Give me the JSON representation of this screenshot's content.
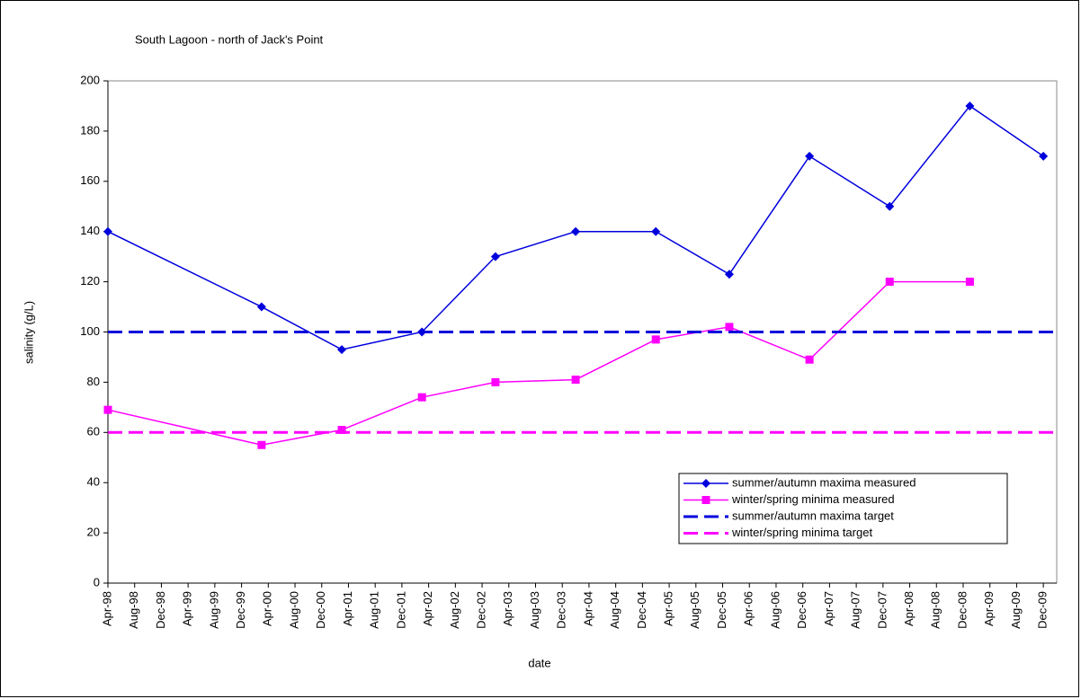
{
  "chart_data": {
    "type": "line",
    "title": "South Lagoon - north of Jack's Point",
    "x_label": "date",
    "y_label": "salinity (g/L)",
    "xlim": [
      "1998-04",
      "2010-02"
    ],
    "xticks": [
      {
        "value": "1998-04",
        "label": "Apr-98"
      },
      {
        "value": "1998-08",
        "label": "Aug-98"
      },
      {
        "value": "1998-12",
        "label": "Dec-98"
      },
      {
        "value": "1999-04",
        "label": "Apr-99"
      },
      {
        "value": "1999-08",
        "label": "Aug-99"
      },
      {
        "value": "1999-12",
        "label": "Dec-99"
      },
      {
        "value": "2000-04",
        "label": "Apr-00"
      },
      {
        "value": "2000-08",
        "label": "Aug-00"
      },
      {
        "value": "2000-12",
        "label": "Dec-00"
      },
      {
        "value": "2001-04",
        "label": "Apr-01"
      },
      {
        "value": "2001-08",
        "label": "Aug-01"
      },
      {
        "value": "2001-12",
        "label": "Dec-01"
      },
      {
        "value": "2002-04",
        "label": "Apr-02"
      },
      {
        "value": "2002-08",
        "label": "Aug-02"
      },
      {
        "value": "2002-12",
        "label": "Dec-02"
      },
      {
        "value": "2003-04",
        "label": "Apr-03"
      },
      {
        "value": "2003-08",
        "label": "Aug-03"
      },
      {
        "value": "2003-12",
        "label": "Dec-03"
      },
      {
        "value": "2004-04",
        "label": "Apr-04"
      },
      {
        "value": "2004-08",
        "label": "Aug-04"
      },
      {
        "value": "2004-12",
        "label": "Dec-04"
      },
      {
        "value": "2005-04",
        "label": "Apr-05"
      },
      {
        "value": "2005-08",
        "label": "Aug-05"
      },
      {
        "value": "2005-12",
        "label": "Dec-05"
      },
      {
        "value": "2006-04",
        "label": "Apr-06"
      },
      {
        "value": "2006-08",
        "label": "Aug-06"
      },
      {
        "value": "2006-12",
        "label": "Dec-06"
      },
      {
        "value": "2007-04",
        "label": "Apr-07"
      },
      {
        "value": "2007-08",
        "label": "Aug-07"
      },
      {
        "value": "2007-12",
        "label": "Dec-07"
      },
      {
        "value": "2008-04",
        "label": "Apr-08"
      },
      {
        "value": "2008-08",
        "label": "Aug-08"
      },
      {
        "value": "2008-12",
        "label": "Dec-08"
      },
      {
        "value": "2009-04",
        "label": "Apr-09"
      },
      {
        "value": "2009-08",
        "label": "Aug-09"
      },
      {
        "value": "2009-12",
        "label": "Dec-09"
      }
    ],
    "ylim": [
      0,
      200
    ],
    "yticks": [
      0,
      20,
      40,
      60,
      80,
      100,
      120,
      140,
      160,
      180,
      200
    ],
    "grid": false,
    "legend": "lower right",
    "series": [
      {
        "name": "summer/autumn maxima measured",
        "color": "#0000dd",
        "marker": "diamond",
        "dashed": false,
        "x": [
          "1998-04",
          "2000-03",
          "2001-03",
          "2002-03",
          "2003-02",
          "2004-02",
          "2005-02",
          "2006-01",
          "2007-01",
          "2008-01",
          "2009-01",
          "2009-12"
        ],
        "values": [
          140,
          110,
          93,
          100,
          130,
          140,
          140,
          123,
          170,
          150,
          190,
          170
        ]
      },
      {
        "name": "winter/spring minima measured",
        "color": "#ff00ff",
        "marker": "square",
        "dashed": false,
        "x": [
          "1998-04",
          "2000-03",
          "2001-03",
          "2002-03",
          "2003-02",
          "2004-02",
          "2005-02",
          "2006-01",
          "2007-01",
          "2008-01",
          "2009-01"
        ],
        "values": [
          69,
          55,
          61,
          74,
          80,
          81,
          97,
          102,
          89,
          120,
          120
        ]
      },
      {
        "name": "summer/autumn maxima target",
        "color": "#0000dd",
        "marker": "none",
        "dashed": true,
        "x": [
          "1998-04",
          "2010-02"
        ],
        "values": [
          100,
          100
        ]
      },
      {
        "name": "winter/spring minima target",
        "color": "#ff00ff",
        "marker": "none",
        "dashed": true,
        "x": [
          "1998-04",
          "2010-02"
        ],
        "values": [
          60,
          60
        ]
      }
    ]
  }
}
